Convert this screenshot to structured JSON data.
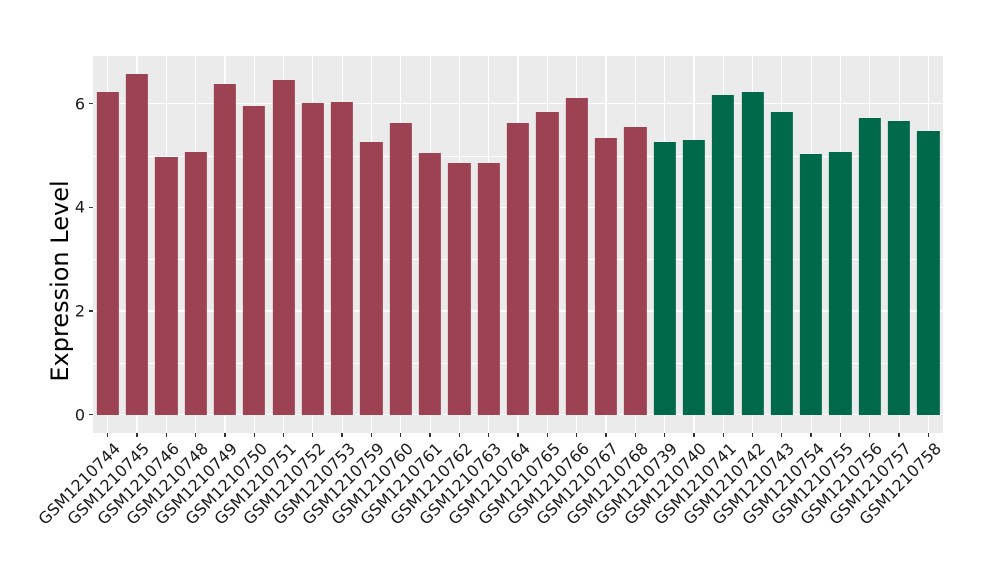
{
  "figure": {
    "background_color": "#FFFFFF",
    "panel_background_color": "#EBEBEB",
    "gridline_color": "#FFFFFF",
    "tick_mark_color": "#333333",
    "tick_label_color": "#1A1A1A",
    "axis_title_color": "#000000"
  },
  "chart_data": {
    "type": "bar",
    "title": "",
    "xlabel": "",
    "ylabel": "Expression Level",
    "ylim": [
      -0.35,
      6.9
    ],
    "yticks": [
      0,
      2,
      4,
      6
    ],
    "yticks_minor": [
      1,
      3,
      5
    ],
    "grid": true,
    "legend": false,
    "categories": [
      "GSM1210744",
      "GSM1210745",
      "GSM1210746",
      "GSM1210748",
      "GSM1210749",
      "GSM1210750",
      "GSM1210751",
      "GSM1210752",
      "GSM1210753",
      "GSM1210759",
      "GSM1210760",
      "GSM1210761",
      "GSM1210762",
      "GSM1210763",
      "GSM1210764",
      "GSM1210765",
      "GSM1210766",
      "GSM1210767",
      "GSM1210768",
      "GSM1210739",
      "GSM1210740",
      "GSM1210741",
      "GSM1210742",
      "GSM1210743",
      "GSM1210754",
      "GSM1210755",
      "GSM1210756",
      "GSM1210757",
      "GSM1210758"
    ],
    "values": [
      6.23,
      6.57,
      4.97,
      5.07,
      6.38,
      5.96,
      6.46,
      6.01,
      6.03,
      5.26,
      5.63,
      5.05,
      4.85,
      4.85,
      5.63,
      5.84,
      6.11,
      5.34,
      5.55,
      5.26,
      5.3,
      6.17,
      6.23,
      5.84,
      5.03,
      5.07,
      5.72,
      5.67,
      5.47
    ],
    "color_groups": [
      "maroon",
      "maroon",
      "maroon",
      "maroon",
      "maroon",
      "maroon",
      "maroon",
      "maroon",
      "maroon",
      "maroon",
      "maroon",
      "maroon",
      "maroon",
      "maroon",
      "maroon",
      "maroon",
      "maroon",
      "maroon",
      "maroon",
      "green",
      "green",
      "green",
      "green",
      "green",
      "green",
      "green",
      "green",
      "green",
      "green"
    ],
    "palette": {
      "maroon": "#9C4252",
      "green": "#00694A"
    }
  }
}
